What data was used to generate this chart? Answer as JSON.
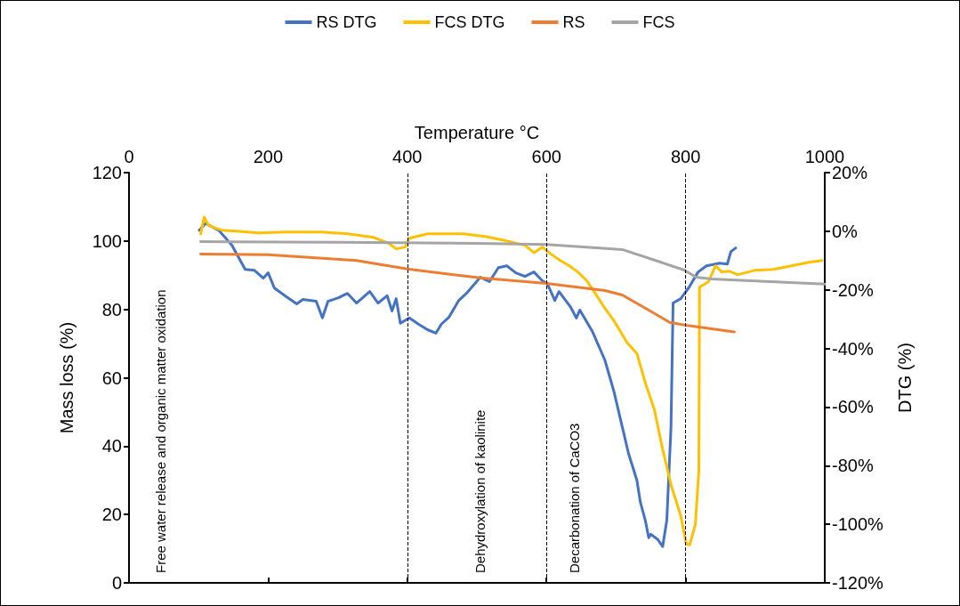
{
  "chart_data": {
    "type": "line",
    "xlabel": "Temperature °C",
    "ylabel": "Mass loss (%)",
    "y2label": "DTG (%)",
    "xlim": [
      0,
      1000
    ],
    "xticks": [
      0,
      200,
      400,
      600,
      800,
      1000
    ],
    "ylim": [
      0,
      120
    ],
    "yticks": [
      0,
      20,
      40,
      60,
      80,
      100,
      120
    ],
    "y2lim": [
      -120,
      20
    ],
    "y2ticks": [
      {
        "value": -120,
        "label": "-120%"
      },
      {
        "value": -100,
        "label": "-100%"
      },
      {
        "value": -80,
        "label": "-80%"
      },
      {
        "value": -60,
        "label": "-60%"
      },
      {
        "value": -40,
        "label": "-40%"
      },
      {
        "value": -20,
        "label": "-20%"
      },
      {
        "value": 0,
        "label": "0%"
      },
      {
        "value": 20,
        "label": "20%"
      }
    ],
    "legend": "top",
    "grid": false,
    "marker": "none",
    "line_style": "solid",
    "series": [
      {
        "name": "RS DTG",
        "color": "#4472c4",
        "axis": "y2",
        "x": [
          101,
          110,
          129,
          148,
          167,
          180,
          193,
          200,
          209,
          224,
          241,
          250,
          269,
          278,
          286,
          301,
          314,
          327,
          346,
          358,
          371,
          378,
          384,
          390,
          403,
          416,
          429,
          441,
          449,
          460,
          474,
          485,
          505,
          518,
          531,
          543,
          556,
          569,
          582,
          594,
          601,
          612,
          618,
          635,
          643,
          648,
          666,
          684,
          697,
          709,
          718,
          730,
          735,
          742,
          747,
          750,
          760,
          767,
          773,
          779,
          782,
          793,
          805,
          818,
          830,
          849,
          860,
          865,
          872
        ],
        "values": [
          0.3,
          2.7,
          0.3,
          -4.8,
          -13,
          -13.3,
          -16,
          -14.2,
          -19.4,
          -22,
          -24.8,
          -23.3,
          -23.9,
          -29.6,
          -23.9,
          -22.7,
          -21.2,
          -24.5,
          -20.6,
          -24.5,
          -22,
          -27.2,
          -23,
          -31.4,
          -29.6,
          -31.7,
          -33.6,
          -34.8,
          -31.7,
          -29.3,
          -23.6,
          -21.2,
          -15.7,
          -17.2,
          -12.4,
          -11.8,
          -14.2,
          -15.4,
          -13.9,
          -16.9,
          -17.8,
          -23.6,
          -20.6,
          -26,
          -29.6,
          -26.9,
          -34.2,
          -44,
          -54.7,
          -66.8,
          -75.9,
          -85,
          -92.5,
          -98.6,
          -104.6,
          -103.4,
          -105.2,
          -107.6,
          -98.6,
          -66.8,
          -24.5,
          -23,
          -19.1,
          -13.9,
          -11.8,
          -10.9,
          -11.2,
          -7,
          -5.7
        ]
      },
      {
        "name": "FCS DTG",
        "color": "#ffc000",
        "axis": "y2",
        "x": [
          103,
          108,
          114,
          122,
          135,
          154,
          186,
          224,
          250,
          276,
          314,
          352,
          374,
          384,
          397,
          403,
          429,
          480,
          512,
          537,
          569,
          582,
          594,
          607,
          620,
          633,
          645,
          658,
          671,
          684,
          697,
          716,
          730,
          742,
          755,
          767,
          779,
          793,
          801,
          806,
          814,
          819,
          820,
          833,
          843,
          852,
          862,
          875,
          900,
          926,
          952,
          977,
          996
        ],
        "values": [
          -0.9,
          4.8,
          2.1,
          1.2,
          0.3,
          0,
          -0.6,
          -0.3,
          -0.3,
          -0.3,
          -0.9,
          -2.1,
          -4.2,
          -6,
          -5.4,
          -2.4,
          -0.9,
          -0.9,
          -1.8,
          -3,
          -4.8,
          -7.3,
          -5.4,
          -7.9,
          -10,
          -11.8,
          -13.9,
          -16.9,
          -21.5,
          -26.3,
          -30.5,
          -38.1,
          -41.7,
          -51.7,
          -60.8,
          -74.4,
          -86.5,
          -97.1,
          -106.7,
          -107,
          -100,
          -81.9,
          -19.1,
          -17.2,
          -11.8,
          -13.9,
          -13.6,
          -14.8,
          -13.3,
          -13,
          -11.8,
          -10.6,
          -10
        ]
      },
      {
        "name": "RS",
        "color": "#ed7d31",
        "x": [
          103,
          200,
          327,
          400,
          505,
          600,
          684,
          709,
          747,
          777,
          805,
          870
        ],
        "values": [
          96.2,
          96,
          94.3,
          91.8,
          89.2,
          87.6,
          85.5,
          84.2,
          79.8,
          76.2,
          75.2,
          73.4
        ]
      },
      {
        "name": "FCS",
        "color": "#a5a5a5",
        "x": [
          103,
          300,
          500,
          600,
          709,
          760,
          798,
          815,
          837,
          1000
        ],
        "values": [
          99.8,
          99.6,
          99.3,
          99,
          97.5,
          94.1,
          91.5,
          89.4,
          88.9,
          87.4
        ]
      }
    ],
    "ref_lines": [
      {
        "axis": "x",
        "value": 400,
        "color": "#000000",
        "line_style": "dashed"
      },
      {
        "axis": "x",
        "value": 600,
        "color": "#000000",
        "line_style": "dashed"
      },
      {
        "axis": "x",
        "value": 800,
        "color": "#000000",
        "line_style": "dashed"
      }
    ],
    "annotations": [
      "Free water release and organic matter oxidation",
      "Dehydroxylation of kaolinite",
      "Decarbonation of CaCO3"
    ]
  }
}
